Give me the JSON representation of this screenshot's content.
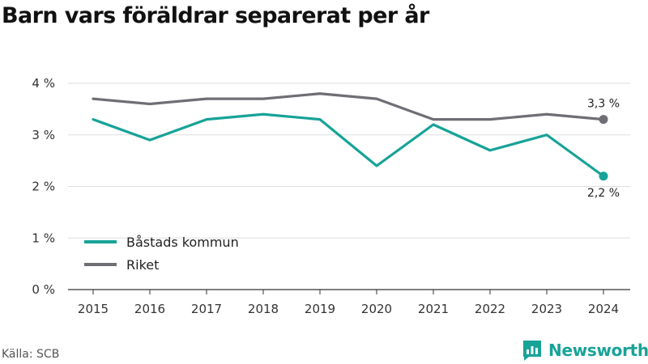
{
  "title": "Barn vars föräldrar separerat per år",
  "source": "Källa: SCB",
  "brand": {
    "name": "Newsworthy",
    "icon": "newsworthy-logo-icon",
    "color": "#17a398"
  },
  "chart_data": {
    "type": "line",
    "x": [
      "2015",
      "2016",
      "2017",
      "2018",
      "2019",
      "2020",
      "2021",
      "2022",
      "2023",
      "2024"
    ],
    "yticks": [
      "0 %",
      "1 %",
      "2 %",
      "3 %",
      "4 %"
    ],
    "ylim": [
      0,
      4
    ],
    "grid": true,
    "legend_position": "bottom-left",
    "series": [
      {
        "name": "Båstads kommun",
        "color": "#17a398",
        "values": [
          3.3,
          2.9,
          3.3,
          3.4,
          3.3,
          2.4,
          3.2,
          2.7,
          3.0,
          2.2
        ],
        "end_label": "2,2 %",
        "end_label_position": "below"
      },
      {
        "name": "Riket",
        "color": "#6f6e75",
        "values": [
          3.7,
          3.6,
          3.7,
          3.7,
          3.8,
          3.7,
          3.3,
          3.3,
          3.4,
          3.3
        ],
        "end_label": "3,3 %",
        "end_label_position": "above"
      }
    ]
  }
}
